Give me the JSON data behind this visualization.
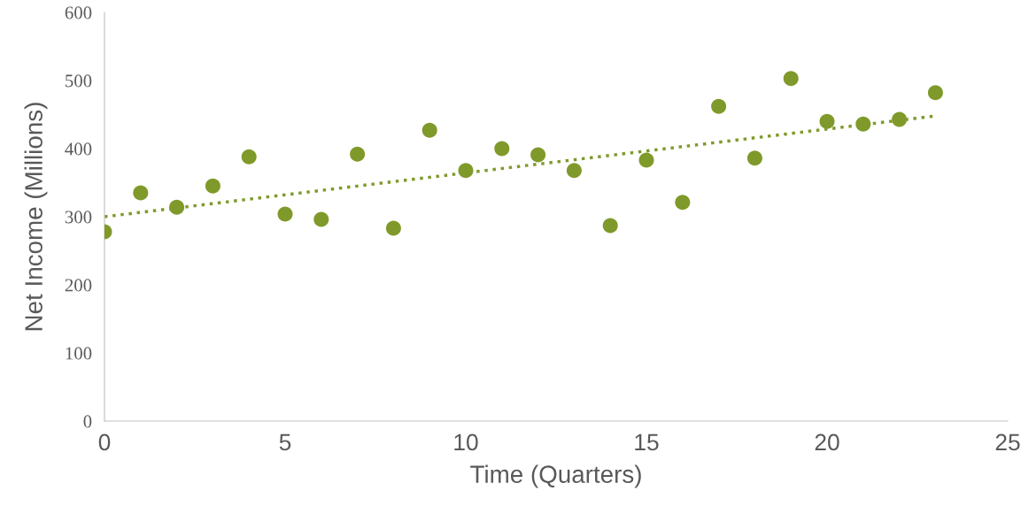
{
  "chart_data": {
    "type": "scatter",
    "xlabel": "Time (Quarters)",
    "ylabel": "Net Income (Millions)",
    "xlim": [
      0,
      25
    ],
    "xticks": [
      0,
      5,
      10,
      15,
      20,
      25
    ],
    "ylim": [
      0,
      600
    ],
    "yticks": [
      0,
      100,
      200,
      300,
      400,
      500,
      600
    ],
    "grid": false,
    "legend": false,
    "marker": "circle",
    "series": [
      {
        "color": "#7f9a2a",
        "x": [
          0,
          1,
          2,
          3,
          4,
          5,
          6,
          7,
          8,
          9,
          10,
          11,
          12,
          13,
          14,
          15,
          16,
          17,
          18,
          19,
          20,
          21,
          22,
          23
        ],
        "values": [
          278,
          335,
          314,
          345,
          388,
          304,
          296,
          392,
          283,
          427,
          368,
          400,
          391,
          368,
          287,
          383,
          321,
          462,
          386,
          503,
          440,
          436,
          443,
          482
        ]
      },
      {
        "type": "line",
        "line_style": "dotted",
        "marker": "none",
        "color": "#7f9a2a",
        "x": [
          0,
          23
        ],
        "values": [
          300,
          448
        ]
      }
    ]
  }
}
